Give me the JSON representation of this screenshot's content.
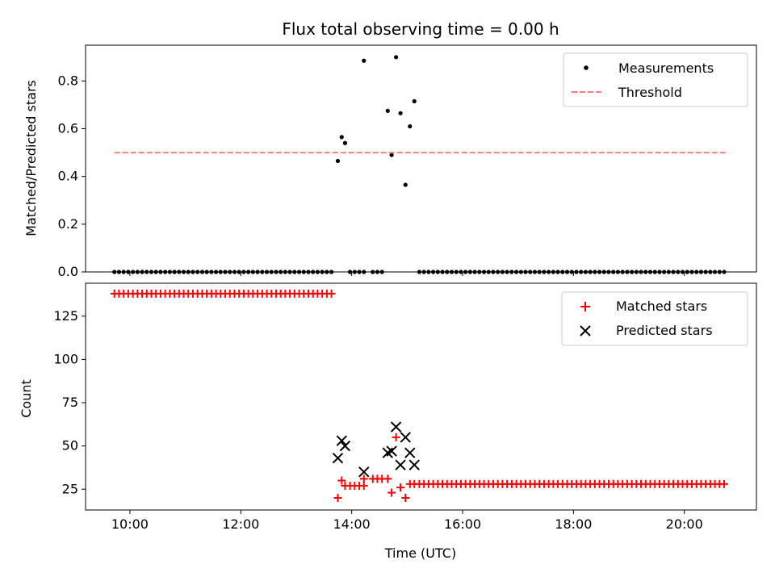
{
  "chart_data": [
    {
      "type": "scatter",
      "title": "Flux total observing time = 0.00 h",
      "xlabel": "",
      "ylabel": "Matched/Predicted stars",
      "xlim": [
        9.2,
        21.3
      ],
      "ylim": [
        0.0,
        0.95
      ],
      "yticks": [
        0.0,
        0.2,
        0.4,
        0.6,
        0.8
      ],
      "ytick_labels": [
        "0.0",
        "0.2",
        "0.4",
        "0.6",
        "0.8"
      ],
      "xticks": [
        10,
        12,
        14,
        16,
        18,
        20
      ],
      "legend_position": "top-right",
      "legend": [
        "Measurements",
        "Threshold"
      ],
      "series": [
        {
          "name": "Measurements",
          "marker": "dot",
          "color": "#000000",
          "zero_runs": [
            {
              "start": 9.72,
              "end": 13.68,
              "step": 0.0833
            },
            {
              "start": 13.97,
              "end": 14.3,
              "step": 0.0833
            },
            {
              "start": 14.38,
              "end": 14.55,
              "step": 0.0833
            },
            {
              "start": 15.22,
              "end": 20.78,
              "step": 0.0833
            }
          ],
          "points": [
            {
              "x": 13.75,
              "y": 0.465
            },
            {
              "x": 13.82,
              "y": 0.565
            },
            {
              "x": 13.88,
              "y": 0.54
            },
            {
              "x": 14.22,
              "y": 0.885
            },
            {
              "x": 14.65,
              "y": 0.675
            },
            {
              "x": 14.72,
              "y": 0.49
            },
            {
              "x": 14.8,
              "y": 0.9
            },
            {
              "x": 14.88,
              "y": 0.665
            },
            {
              "x": 14.97,
              "y": 0.365
            },
            {
              "x": 15.05,
              "y": 0.61
            },
            {
              "x": 15.13,
              "y": 0.715
            }
          ]
        },
        {
          "name": "Threshold",
          "style": "dashed",
          "color": "#ff7f7f",
          "x": [
            9.72,
            20.78
          ],
          "y": [
            0.5,
            0.5
          ]
        }
      ]
    },
    {
      "type": "scatter",
      "title": "",
      "xlabel": "Time (UTC)",
      "ylabel": "Count",
      "xlim": [
        9.2,
        21.3
      ],
      "ylim": [
        13,
        144
      ],
      "yticks": [
        25,
        50,
        75,
        100,
        125
      ],
      "ytick_labels": [
        "25",
        "50",
        "75",
        "100",
        "125"
      ],
      "xticks": [
        10,
        12,
        14,
        16,
        18,
        20
      ],
      "xtick_labels": [
        "10:00",
        "12:00",
        "14:00",
        "16:00",
        "18:00",
        "20:00"
      ],
      "legend_position": "top-right",
      "legend": [
        "Matched stars",
        "Predicted stars"
      ],
      "series": [
        {
          "name": "Matched stars",
          "marker": "plus",
          "color": "#ff0000",
          "runs": [
            {
              "start": 9.72,
              "end": 13.68,
              "step": 0.0833,
              "value": 138
            },
            {
              "start": 13.97,
              "end": 14.3,
              "step": 0.0833,
              "value": 27
            },
            {
              "start": 14.38,
              "end": 14.55,
              "step": 0.0833,
              "value": 31
            },
            {
              "start": 15.22,
              "end": 20.78,
              "step": 0.0833,
              "value": 28
            }
          ],
          "points": [
            {
              "x": 13.75,
              "y": 20
            },
            {
              "x": 13.82,
              "y": 30
            },
            {
              "x": 13.88,
              "y": 27
            },
            {
              "x": 14.22,
              "y": 31
            },
            {
              "x": 14.65,
              "y": 31
            },
            {
              "x": 14.72,
              "y": 23
            },
            {
              "x": 14.8,
              "y": 55
            },
            {
              "x": 14.88,
              "y": 26
            },
            {
              "x": 14.97,
              "y": 20
            },
            {
              "x": 15.05,
              "y": 28
            },
            {
              "x": 15.13,
              "y": 28
            }
          ]
        },
        {
          "name": "Predicted stars",
          "marker": "x",
          "color": "#000000",
          "points": [
            {
              "x": 13.75,
              "y": 43
            },
            {
              "x": 13.82,
              "y": 53
            },
            {
              "x": 13.88,
              "y": 50
            },
            {
              "x": 14.22,
              "y": 35
            },
            {
              "x": 14.65,
              "y": 46
            },
            {
              "x": 14.72,
              "y": 47
            },
            {
              "x": 14.8,
              "y": 61
            },
            {
              "x": 14.88,
              "y": 39
            },
            {
              "x": 14.97,
              "y": 55
            },
            {
              "x": 15.05,
              "y": 46
            },
            {
              "x": 15.13,
              "y": 39
            }
          ]
        }
      ]
    }
  ]
}
